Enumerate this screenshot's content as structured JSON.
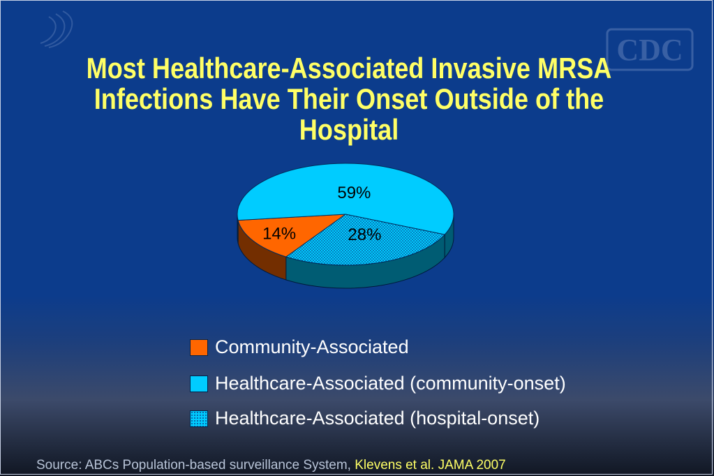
{
  "title": {
    "line1": "Most Healthcare-Associated Invasive MRSA",
    "line2": "Infections Have Their Onset Outside of the",
    "line3": "Hospital"
  },
  "chart_data": {
    "type": "pie",
    "three_d": true,
    "slices": [
      {
        "label": "Community-Associated",
        "value": 14,
        "data_label": "14%",
        "color": "#ff6600",
        "pattern": "solid"
      },
      {
        "label": "Healthcare-Associated (community-onset)",
        "value": 59,
        "data_label": "59%",
        "color": "#00ccff",
        "pattern": "solid"
      },
      {
        "label": "Healthcare-Associated (hospital-onset)",
        "value": 28,
        "data_label": "28%",
        "color": "#00ccff",
        "pattern": "dotted"
      }
    ],
    "legend_position": "bottom"
  },
  "legend": {
    "items": [
      {
        "label": "Community-Associated"
      },
      {
        "label": "Healthcare-Associated (community-onset)"
      },
      {
        "label": "Healthcare-Associated (hospital-onset)"
      }
    ]
  },
  "footer": {
    "source_prefix": "Source: ABCs Population-based surveillance System,",
    "citation": "Klevens et al.  JAMA 2007"
  },
  "branding": {
    "logo_text": "CDC"
  },
  "colors": {
    "background": "#0c3c8c",
    "title": "#ffff66",
    "orange": "#ff6600",
    "cyan": "#00ccff"
  }
}
